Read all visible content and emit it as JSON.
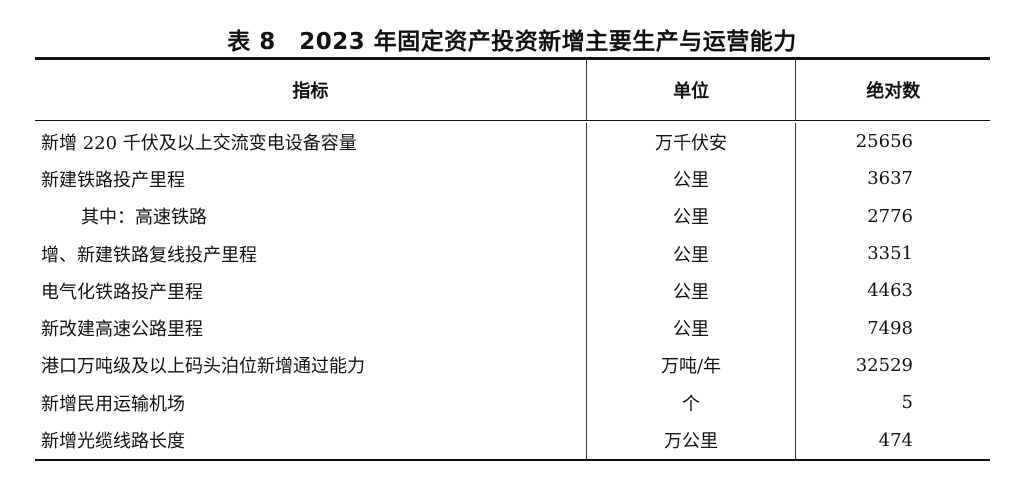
{
  "title": "表 8　2023 年固定资产投资新增主要生产与运营能力",
  "columns": [
    "指标",
    "单位",
    "绝对数"
  ],
  "rows": [
    {
      "indicator": "新增 220 千伏及以上交流变电设备容量",
      "unit": "万千伏安",
      "value": "25656",
      "indent": false
    },
    {
      "indicator": "新建铁路投产里程",
      "unit": "公里",
      "value": "3637",
      "indent": false
    },
    {
      "indicator": "其中：高速铁路",
      "unit": "公里",
      "value": "2776",
      "indent": true
    },
    {
      "indicator": "增、新建铁路复线投产里程",
      "unit": "公里",
      "value": "3351",
      "indent": false
    },
    {
      "indicator": "电气化铁路投产里程",
      "unit": "公里",
      "value": "4463",
      "indent": false
    },
    {
      "indicator": "新改建高速公路里程",
      "unit": "公里",
      "value": "7498",
      "indent": false
    },
    {
      "indicator": "港口万吨级及以上码头泊位新增通过能力",
      "unit": "万吨/年",
      "value": "32529",
      "indent": false
    },
    {
      "indicator": "新增民用运输机场",
      "unit": "个",
      "value": "5",
      "indent": false
    },
    {
      "indicator": "新增光缆线路长度",
      "unit": "万公里",
      "value": "474",
      "indent": false
    }
  ]
}
